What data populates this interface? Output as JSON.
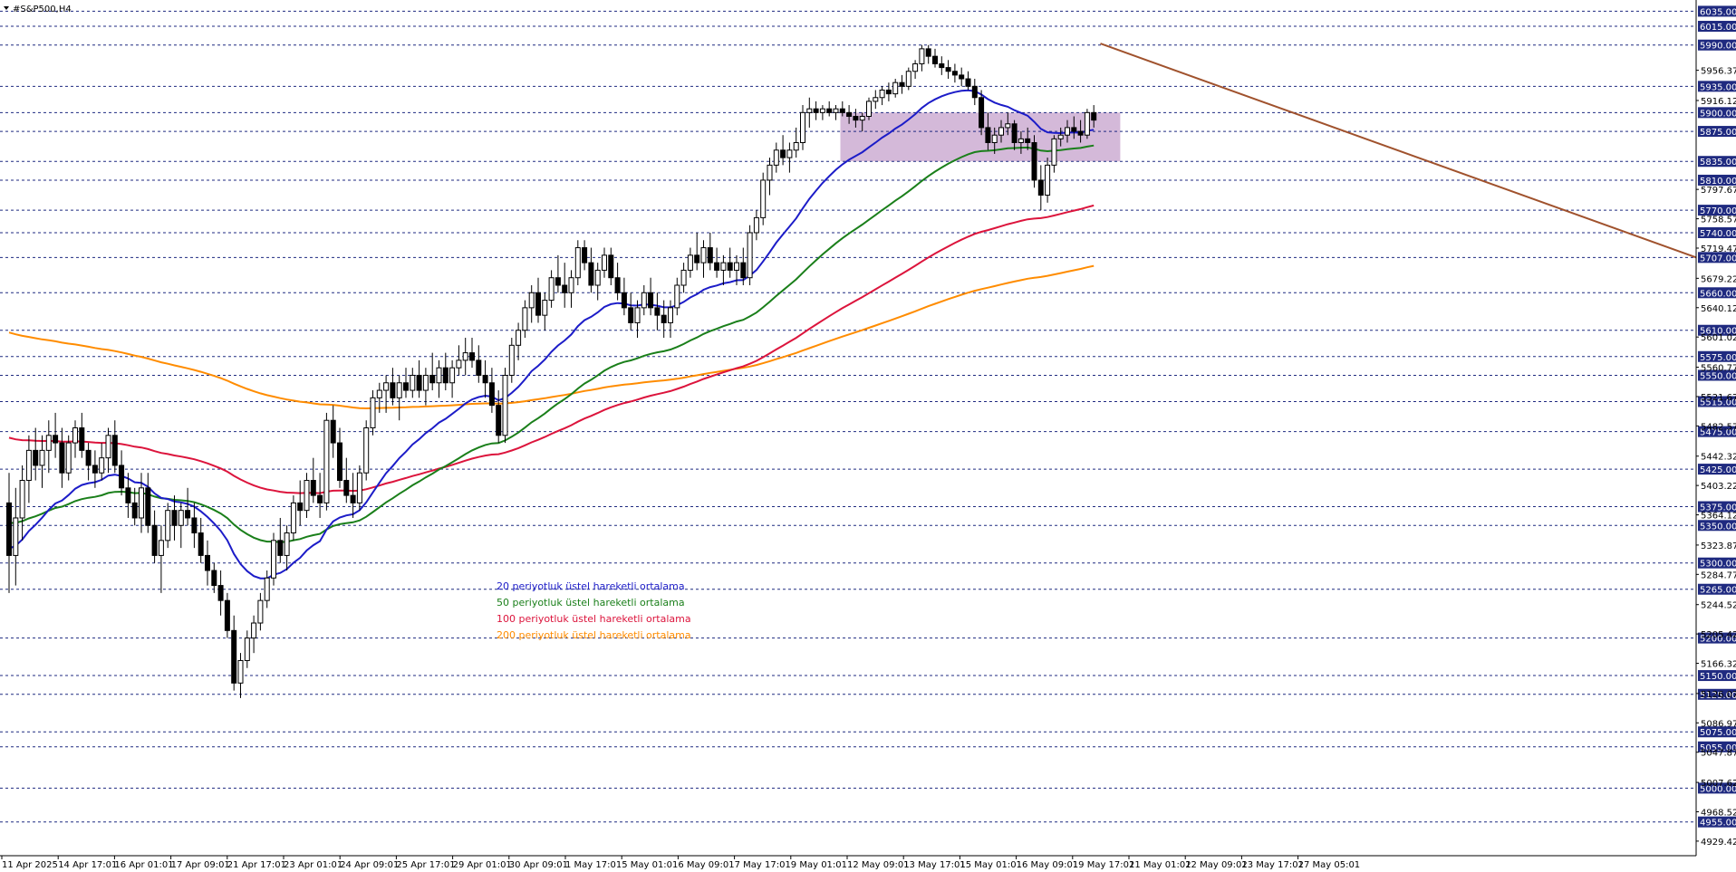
{
  "symbol_label": "#S&P500,H4",
  "colors": {
    "ema20": "#1c1cc8",
    "ema50": "#1a7f1a",
    "ema100": "#dc143c",
    "ema200": "#ff8c00",
    "trendline": "#a0522d",
    "zone_fill": "#c9a8cf",
    "level_line": "#1f2a80",
    "price_badge": "#1f2a80"
  },
  "legend": [
    {
      "label": "20 periyotluk üstel hareketli ortalama",
      "color": "#1c1cc8"
    },
    {
      "label": "50 periyotluk üstel hareketli ortalama",
      "color": "#1a7f1a"
    },
    {
      "label": "100 periyotluk üstel hareketli ortalama",
      "color": "#dc143c"
    },
    {
      "label": "200 periyotluk üstel hareketli ortalama",
      "color": "#ff8c00"
    }
  ],
  "chart_data": {
    "type": "candlestick",
    "title": "#S&P500,H4",
    "ylim": [
      4910,
      6050
    ],
    "levels": [
      6035.0,
      6015.0,
      5990.0,
      5935.0,
      5900.0,
      5875.0,
      5835.0,
      5810.0,
      5770.0,
      5740.0,
      5707.0,
      5660.0,
      5610.0,
      5575.0,
      5550.0,
      5515.0,
      5475.0,
      5425.0,
      5375.0,
      5350.0,
      5300.0,
      5265.0,
      5200.0,
      5150.0,
      5125.0,
      5075.0,
      5055.0,
      5000.0,
      4955.0
    ],
    "y_ticks": [
      "5956.37",
      "5916.12",
      "5797.67",
      "5758.57",
      "5719.47",
      "5679.22",
      "5640.12",
      "5601.02",
      "5560.77",
      "5521.67",
      "5482.57",
      "5442.32",
      "5403.22",
      "5364.12",
      "5323.87",
      "5284.77",
      "5244.52",
      "5205.42",
      "5166.32",
      "5126.07",
      "5086.97",
      "5047.87",
      "5007.62",
      "4968.52",
      "4929.42"
    ],
    "x_ticks": [
      "11 Apr 2025",
      "14 Apr 17:01",
      "16 Apr 01:01",
      "17 Apr 09:01",
      "21 Apr 17:01",
      "23 Apr 01:01",
      "24 Apr 09:01",
      "25 Apr 17:01",
      "29 Apr 01:01",
      "30 Apr 09:01",
      "1 May 17:01",
      "5 May 01:01",
      "6 May 09:01",
      "7 May 17:01",
      "9 May 01:01",
      "12 May 09:01",
      "13 May 17:01",
      "15 May 01:01",
      "16 May 09:01",
      "19 May 17:01",
      "21 May 01:01",
      "22 May 09:01",
      "23 May 17:01",
      "27 May 05:01"
    ],
    "zone": {
      "low": 5835,
      "high": 5900
    },
    "trendline": {
      "start": {
        "bar": 165,
        "price": 5992
      },
      "end": {
        "bar": 251,
        "price": 5707
      }
    },
    "ohlc": [
      [
        5380,
        5420,
        5260,
        5310
      ],
      [
        5310,
        5400,
        5270,
        5360
      ],
      [
        5360,
        5430,
        5330,
        5410
      ],
      [
        5410,
        5470,
        5380,
        5450
      ],
      [
        5450,
        5480,
        5410,
        5430
      ],
      [
        5430,
        5470,
        5400,
        5450
      ],
      [
        5450,
        5490,
        5420,
        5470
      ],
      [
        5470,
        5500,
        5440,
        5460
      ],
      [
        5460,
        5480,
        5400,
        5420
      ],
      [
        5420,
        5470,
        5410,
        5460
      ],
      [
        5460,
        5490,
        5440,
        5480
      ],
      [
        5480,
        5500,
        5440,
        5450
      ],
      [
        5450,
        5460,
        5410,
        5430
      ],
      [
        5430,
        5450,
        5400,
        5420
      ],
      [
        5420,
        5460,
        5410,
        5440
      ],
      [
        5440,
        5480,
        5420,
        5470
      ],
      [
        5470,
        5490,
        5420,
        5430
      ],
      [
        5430,
        5450,
        5390,
        5400
      ],
      [
        5400,
        5420,
        5360,
        5380
      ],
      [
        5380,
        5400,
        5350,
        5360
      ],
      [
        5360,
        5420,
        5340,
        5400
      ],
      [
        5400,
        5420,
        5340,
        5350
      ],
      [
        5350,
        5370,
        5300,
        5310
      ],
      [
        5310,
        5350,
        5260,
        5330
      ],
      [
        5330,
        5380,
        5320,
        5370
      ],
      [
        5370,
        5390,
        5330,
        5350
      ],
      [
        5350,
        5380,
        5320,
        5370
      ],
      [
        5370,
        5400,
        5350,
        5360
      ],
      [
        5360,
        5380,
        5320,
        5340
      ],
      [
        5340,
        5360,
        5300,
        5310
      ],
      [
        5310,
        5330,
        5270,
        5290
      ],
      [
        5290,
        5300,
        5260,
        5270
      ],
      [
        5270,
        5290,
        5230,
        5250
      ],
      [
        5250,
        5260,
        5200,
        5210
      ],
      [
        5210,
        5230,
        5130,
        5140
      ],
      [
        5140,
        5180,
        5120,
        5170
      ],
      [
        5170,
        5210,
        5160,
        5200
      ],
      [
        5200,
        5230,
        5180,
        5220
      ],
      [
        5220,
        5260,
        5210,
        5250
      ],
      [
        5250,
        5290,
        5240,
        5280
      ],
      [
        5280,
        5340,
        5270,
        5330
      ],
      [
        5330,
        5360,
        5300,
        5310
      ],
      [
        5310,
        5350,
        5290,
        5340
      ],
      [
        5340,
        5390,
        5330,
        5380
      ],
      [
        5380,
        5410,
        5350,
        5370
      ],
      [
        5370,
        5420,
        5360,
        5410
      ],
      [
        5410,
        5440,
        5380,
        5390
      ],
      [
        5390,
        5420,
        5360,
        5380
      ],
      [
        5380,
        5500,
        5370,
        5490
      ],
      [
        5490,
        5510,
        5440,
        5460
      ],
      [
        5460,
        5480,
        5400,
        5410
      ],
      [
        5410,
        5440,
        5380,
        5390
      ],
      [
        5390,
        5420,
        5360,
        5380
      ],
      [
        5380,
        5430,
        5370,
        5420
      ],
      [
        5420,
        5490,
        5410,
        5480
      ],
      [
        5480,
        5530,
        5470,
        5520
      ],
      [
        5520,
        5540,
        5500,
        5530
      ],
      [
        5530,
        5550,
        5500,
        5540
      ],
      [
        5540,
        5560,
        5510,
        5520
      ],
      [
        5520,
        5550,
        5490,
        5540
      ],
      [
        5540,
        5560,
        5520,
        5530
      ],
      [
        5530,
        5560,
        5520,
        5550
      ],
      [
        5550,
        5570,
        5520,
        5530
      ],
      [
        5530,
        5560,
        5510,
        5550
      ],
      [
        5550,
        5580,
        5530,
        5540
      ],
      [
        5540,
        5570,
        5520,
        5560
      ],
      [
        5560,
        5580,
        5530,
        5540
      ],
      [
        5540,
        5570,
        5520,
        5560
      ],
      [
        5560,
        5590,
        5550,
        5570
      ],
      [
        5570,
        5600,
        5550,
        5580
      ],
      [
        5580,
        5600,
        5560,
        5570
      ],
      [
        5570,
        5590,
        5540,
        5550
      ],
      [
        5550,
        5570,
        5520,
        5540
      ],
      [
        5540,
        5560,
        5500,
        5510
      ],
      [
        5510,
        5530,
        5460,
        5470
      ],
      [
        5470,
        5560,
        5460,
        5550
      ],
      [
        5550,
        5600,
        5540,
        5590
      ],
      [
        5590,
        5620,
        5570,
        5610
      ],
      [
        5610,
        5650,
        5600,
        5640
      ],
      [
        5640,
        5670,
        5620,
        5660
      ],
      [
        5660,
        5680,
        5620,
        5630
      ],
      [
        5630,
        5660,
        5610,
        5650
      ],
      [
        5650,
        5690,
        5640,
        5680
      ],
      [
        5680,
        5710,
        5660,
        5670
      ],
      [
        5670,
        5700,
        5640,
        5660
      ],
      [
        5660,
        5690,
        5640,
        5680
      ],
      [
        5680,
        5730,
        5670,
        5720
      ],
      [
        5720,
        5730,
        5690,
        5700
      ],
      [
        5700,
        5720,
        5660,
        5670
      ],
      [
        5670,
        5700,
        5650,
        5690
      ],
      [
        5690,
        5720,
        5680,
        5710
      ],
      [
        5710,
        5720,
        5670,
        5680
      ],
      [
        5680,
        5700,
        5650,
        5660
      ],
      [
        5660,
        5680,
        5630,
        5640
      ],
      [
        5640,
        5660,
        5610,
        5620
      ],
      [
        5620,
        5650,
        5600,
        5640
      ],
      [
        5640,
        5670,
        5630,
        5660
      ],
      [
        5660,
        5680,
        5630,
        5640
      ],
      [
        5640,
        5660,
        5610,
        5630
      ],
      [
        5630,
        5650,
        5600,
        5620
      ],
      [
        5620,
        5650,
        5600,
        5640
      ],
      [
        5640,
        5680,
        5630,
        5670
      ],
      [
        5670,
        5700,
        5660,
        5690
      ],
      [
        5690,
        5720,
        5680,
        5710
      ],
      [
        5710,
        5740,
        5690,
        5700
      ],
      [
        5700,
        5730,
        5680,
        5720
      ],
      [
        5720,
        5740,
        5690,
        5700
      ],
      [
        5700,
        5720,
        5680,
        5690
      ],
      [
        5690,
        5710,
        5670,
        5700
      ],
      [
        5700,
        5720,
        5680,
        5690
      ],
      [
        5690,
        5710,
        5670,
        5700
      ],
      [
        5700,
        5720,
        5670,
        5680
      ],
      [
        5680,
        5750,
        5670,
        5740
      ],
      [
        5740,
        5770,
        5730,
        5760
      ],
      [
        5760,
        5820,
        5750,
        5810
      ],
      [
        5810,
        5840,
        5790,
        5830
      ],
      [
        5830,
        5860,
        5820,
        5850
      ],
      [
        5850,
        5870,
        5830,
        5840
      ],
      [
        5840,
        5860,
        5820,
        5850
      ],
      [
        5850,
        5880,
        5840,
        5860
      ],
      [
        5860,
        5910,
        5850,
        5900
      ],
      [
        5900,
        5920,
        5880,
        5905
      ],
      [
        5905,
        5915,
        5890,
        5900
      ],
      [
        5900,
        5910,
        5890,
        5905
      ],
      [
        5905,
        5915,
        5895,
        5900
      ],
      [
        5900,
        5910,
        5890,
        5905
      ],
      [
        5905,
        5915,
        5895,
        5900
      ],
      [
        5900,
        5910,
        5885,
        5895
      ],
      [
        5895,
        5905,
        5880,
        5890
      ],
      [
        5890,
        5900,
        5875,
        5895
      ],
      [
        5895,
        5920,
        5890,
        5915
      ],
      [
        5915,
        5930,
        5905,
        5920
      ],
      [
        5920,
        5935,
        5910,
        5930
      ],
      [
        5930,
        5940,
        5915,
        5925
      ],
      [
        5925,
        5945,
        5920,
        5940
      ],
      [
        5940,
        5950,
        5925,
        5935
      ],
      [
        5935,
        5960,
        5930,
        5955
      ],
      [
        5955,
        5970,
        5945,
        5965
      ],
      [
        5965,
        5990,
        5955,
        5985
      ],
      [
        5985,
        5990,
        5965,
        5975
      ],
      [
        5975,
        5985,
        5960,
        5965
      ],
      [
        5965,
        5975,
        5950,
        5960
      ],
      [
        5960,
        5970,
        5945,
        5955
      ],
      [
        5955,
        5965,
        5940,
        5950
      ],
      [
        5950,
        5960,
        5935,
        5945
      ],
      [
        5945,
        5955,
        5930,
        5935
      ],
      [
        5935,
        5945,
        5910,
        5920
      ],
      [
        5920,
        5930,
        5870,
        5880
      ],
      [
        5880,
        5900,
        5850,
        5860
      ],
      [
        5860,
        5880,
        5845,
        5870
      ],
      [
        5870,
        5890,
        5860,
        5880
      ],
      [
        5880,
        5900,
        5870,
        5885
      ],
      [
        5885,
        5890,
        5850,
        5860
      ],
      [
        5860,
        5875,
        5845,
        5865
      ],
      [
        5865,
        5880,
        5850,
        5860
      ],
      [
        5860,
        5870,
        5800,
        5810
      ],
      [
        5810,
        5830,
        5770,
        5790
      ],
      [
        5790,
        5840,
        5780,
        5830
      ],
      [
        5830,
        5870,
        5820,
        5865
      ],
      [
        5865,
        5880,
        5855,
        5870
      ],
      [
        5870,
        5890,
        5860,
        5880
      ],
      [
        5880,
        5895,
        5865,
        5875
      ],
      [
        5875,
        5890,
        5860,
        5870
      ],
      [
        5870,
        5905,
        5865,
        5900
      ],
      [
        5900,
        5910,
        5880,
        5890
      ]
    ]
  }
}
